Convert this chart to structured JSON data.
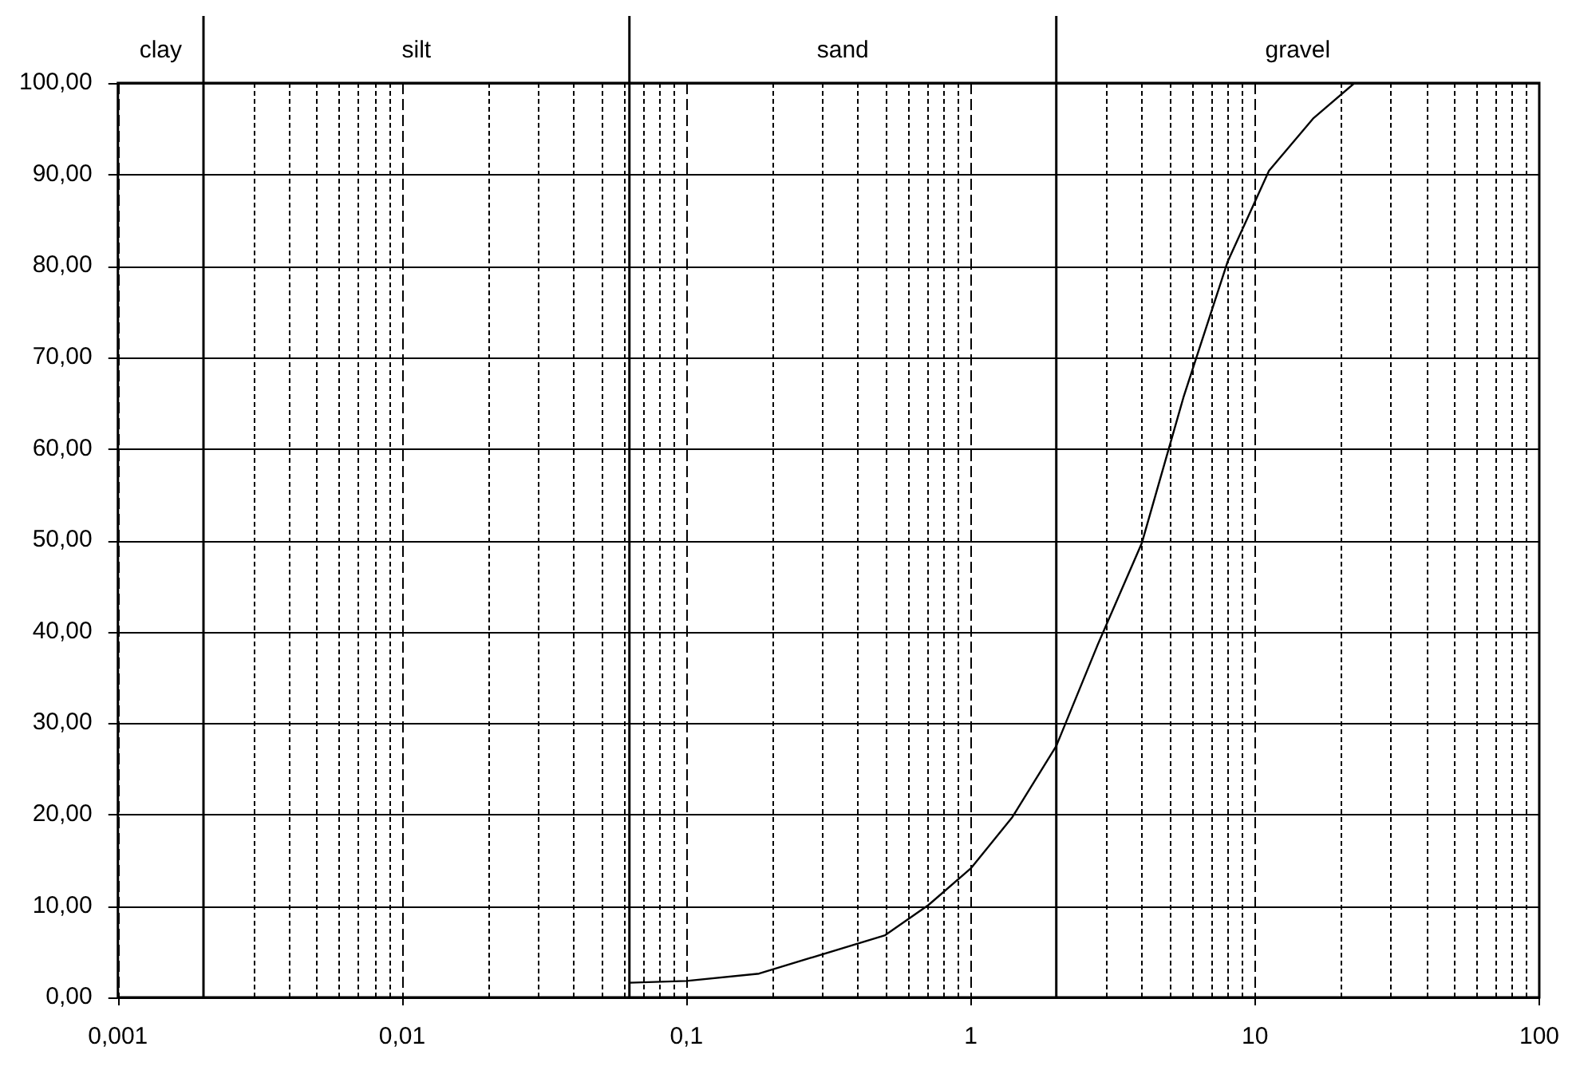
{
  "chart_data": {
    "type": "line",
    "log": "x",
    "grid": true,
    "xlim": [
      0.001,
      100
    ],
    "xticks": [
      {
        "value": 0.001,
        "label": "0,001"
      },
      {
        "value": 0.003,
        "label": null
      },
      {
        "value": 0.004,
        "label": null
      },
      {
        "value": 0.005,
        "label": null
      },
      {
        "value": 0.006,
        "label": null
      },
      {
        "value": 0.007,
        "label": null
      },
      {
        "value": 0.008,
        "label": null
      },
      {
        "value": 0.009,
        "label": null
      },
      {
        "value": 0.01,
        "label": "0,01"
      },
      {
        "value": 0.02,
        "label": null
      },
      {
        "value": 0.03,
        "label": null
      },
      {
        "value": 0.04,
        "label": null
      },
      {
        "value": 0.05,
        "label": null
      },
      {
        "value": 0.06,
        "label": null
      },
      {
        "value": 0.07,
        "label": null
      },
      {
        "value": 0.08,
        "label": null
      },
      {
        "value": 0.09,
        "label": null
      },
      {
        "value": 0.1,
        "label": "0,1"
      },
      {
        "value": 0.2,
        "label": null
      },
      {
        "value": 0.3,
        "label": null
      },
      {
        "value": 0.4,
        "label": null
      },
      {
        "value": 0.5,
        "label": null
      },
      {
        "value": 0.6,
        "label": null
      },
      {
        "value": 0.7,
        "label": null
      },
      {
        "value": 0.8,
        "label": null
      },
      {
        "value": 0.9,
        "label": null
      },
      {
        "value": 1,
        "label": "1"
      },
      {
        "value": 3,
        "label": null
      },
      {
        "value": 4,
        "label": null
      },
      {
        "value": 5,
        "label": null
      },
      {
        "value": 6,
        "label": null
      },
      {
        "value": 7,
        "label": null
      },
      {
        "value": 8,
        "label": null
      },
      {
        "value": 9,
        "label": null
      },
      {
        "value": 10,
        "label": "10"
      },
      {
        "value": 20,
        "label": null
      },
      {
        "value": 30,
        "label": null
      },
      {
        "value": 40,
        "label": null
      },
      {
        "value": 50,
        "label": null
      },
      {
        "value": 60,
        "label": null
      },
      {
        "value": 70,
        "label": null
      },
      {
        "value": 80,
        "label": null
      },
      {
        "value": 90,
        "label": null
      },
      {
        "value": 100,
        "label": "100"
      }
    ],
    "ylim": [
      0,
      100
    ],
    "yticks": [
      {
        "value": 0,
        "label": "0,00"
      },
      {
        "value": 10,
        "label": "10,00"
      },
      {
        "value": 20,
        "label": "20,00"
      },
      {
        "value": 30,
        "label": "30,00"
      },
      {
        "value": 40,
        "label": "40,00"
      },
      {
        "value": 50,
        "label": "50,00"
      },
      {
        "value": 60,
        "label": "60,00"
      },
      {
        "value": 70,
        "label": "70,00"
      },
      {
        "value": 80,
        "label": "80,00"
      },
      {
        "value": 90,
        "label": "90,00"
      },
      {
        "value": 100,
        "label": "100,00"
      }
    ],
    "ref_lines": [
      {
        "axis": "x",
        "value": 0.002
      },
      {
        "axis": "x",
        "value": 0.063
      },
      {
        "axis": "x",
        "value": 2
      }
    ],
    "annotations": [
      "clay",
      "silt",
      "sand",
      "gravel"
    ],
    "series": [
      {
        "color": "#000000",
        "x": [
          0.063,
          0.1,
          0.18,
          0.5,
          0.71,
          1,
          1.4,
          2,
          2.8,
          4,
          5.6,
          8,
          11.2,
          16,
          22.4
        ],
        "values": [
          1.6,
          1.8,
          2.6,
          6.8,
          10.1,
          14.1,
          19.7,
          27.5,
          38.6,
          49.7,
          65.6,
          80.4,
          90.4,
          96.1,
          100
        ]
      }
    ]
  }
}
